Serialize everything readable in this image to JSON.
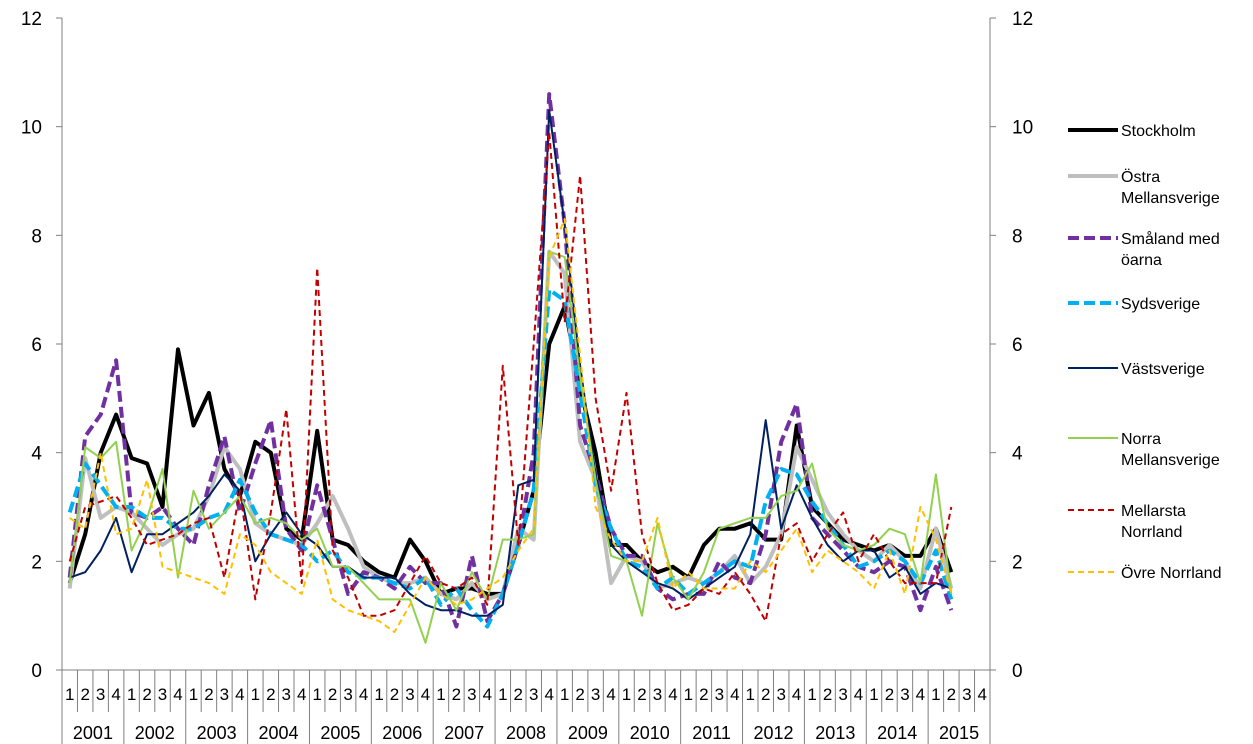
{
  "chart_data": {
    "type": "line",
    "title": "",
    "xlabel": "",
    "ylabel": "",
    "ylim": [
      0,
      12
    ],
    "yticks": [
      0,
      2,
      4,
      6,
      8,
      10,
      12
    ],
    "secondary_y_axis": true,
    "legend_position": "right",
    "grid": false,
    "quarter_labels": [
      "1",
      "2",
      "3",
      "4"
    ],
    "years": [
      "2001",
      "2002",
      "2003",
      "2004",
      "2005",
      "2006",
      "2007",
      "2008",
      "2009",
      "2010",
      "2011",
      "2012",
      "2013",
      "2014",
      "2015"
    ],
    "x": [
      "2001Q1",
      "2001Q2",
      "2001Q3",
      "2001Q4",
      "2002Q1",
      "2002Q2",
      "2002Q3",
      "2002Q4",
      "2003Q1",
      "2003Q2",
      "2003Q3",
      "2003Q4",
      "2004Q1",
      "2004Q2",
      "2004Q3",
      "2004Q4",
      "2005Q1",
      "2005Q2",
      "2005Q3",
      "2005Q4",
      "2006Q1",
      "2006Q2",
      "2006Q3",
      "2006Q4",
      "2007Q1",
      "2007Q2",
      "2007Q3",
      "2007Q4",
      "2008Q1",
      "2008Q2",
      "2008Q3",
      "2008Q4",
      "2009Q1",
      "2009Q2",
      "2009Q3",
      "2009Q4",
      "2010Q1",
      "2010Q2",
      "2010Q3",
      "2010Q4",
      "2011Q1",
      "2011Q2",
      "2011Q3",
      "2011Q4",
      "2012Q1",
      "2012Q2",
      "2012Q3",
      "2012Q4",
      "2013Q1",
      "2013Q2",
      "2013Q3",
      "2013Q4",
      "2014Q1",
      "2014Q2",
      "2014Q3",
      "2014Q4",
      "2015Q1",
      "2015Q2"
    ],
    "series": [
      {
        "name": "Stockholm",
        "color": "#000000",
        "width": 4,
        "dash": "",
        "values": [
          1.6,
          2.5,
          4.0,
          4.7,
          3.9,
          3.8,
          3.0,
          5.9,
          4.5,
          5.1,
          3.7,
          3.2,
          4.2,
          4.0,
          2.6,
          2.4,
          4.4,
          2.4,
          2.3,
          2.0,
          1.8,
          1.7,
          2.4,
          2.0,
          1.4,
          1.5,
          1.5,
          1.4,
          1.4,
          2.3,
          3.3,
          6.0,
          6.7,
          5.2,
          4.0,
          2.3,
          2.3,
          2.0,
          1.8,
          1.9,
          1.7,
          2.3,
          2.6,
          2.6,
          2.7,
          2.4,
          2.4,
          4.5,
          3.0,
          2.7,
          2.4,
          2.3,
          2.2,
          2.3,
          2.1,
          2.1,
          2.6,
          1.8
        ]
      },
      {
        "name": "Östra Mellansverige",
        "color": "#bfbfbf",
        "width": 4,
        "dash": "",
        "values": [
          1.5,
          3.9,
          2.8,
          3.0,
          2.9,
          2.6,
          2.3,
          2.5,
          2.6,
          3.2,
          4.1,
          3.7,
          2.7,
          2.5,
          2.4,
          2.3,
          2.7,
          3.2,
          2.6,
          1.9,
          1.7,
          1.6,
          1.6,
          1.7,
          1.4,
          1.3,
          1.6,
          1.3,
          1.4,
          2.6,
          2.4,
          7.7,
          7.3,
          4.2,
          3.5,
          1.6,
          2.1,
          2.0,
          1.5,
          1.6,
          1.7,
          1.6,
          1.8,
          2.1,
          1.6,
          1.9,
          2.5,
          4.1,
          3.5,
          2.9,
          2.5,
          2.2,
          2.0,
          2.3,
          2.0,
          1.5,
          2.6,
          1.5
        ]
      },
      {
        "name": "Småland med öarna",
        "color": "#7030a0",
        "width": 4,
        "dash": "11,5",
        "values": [
          1.7,
          4.3,
          4.7,
          5.7,
          2.9,
          2.8,
          3.0,
          2.6,
          2.3,
          3.4,
          4.3,
          2.9,
          3.8,
          4.6,
          2.6,
          2.2,
          3.4,
          2.4,
          1.4,
          1.8,
          1.7,
          1.5,
          1.9,
          1.6,
          1.6,
          0.8,
          2.1,
          0.9,
          1.4,
          2.3,
          4.0,
          10.6,
          8.2,
          4.5,
          3.6,
          2.6,
          2.1,
          2.1,
          1.5,
          1.3,
          1.4,
          1.4,
          2.0,
          1.7,
          1.6,
          2.5,
          4.2,
          4.9,
          2.8,
          2.5,
          2.2,
          1.9,
          1.8,
          2.0,
          1.9,
          1.1,
          1.9,
          1.1
        ]
      },
      {
        "name": "Sydsverige",
        "color": "#00b0f0",
        "width": 4,
        "dash": "11,5",
        "values": [
          2.9,
          3.8,
          3.4,
          3.0,
          3.0,
          2.8,
          2.8,
          2.6,
          2.6,
          2.8,
          2.9,
          3.5,
          2.9,
          2.5,
          2.4,
          2.3,
          2.0,
          2.2,
          1.8,
          1.7,
          1.7,
          1.6,
          1.5,
          1.7,
          1.2,
          1.5,
          1.1,
          0.8,
          1.4,
          2.3,
          3.3,
          7.0,
          6.8,
          5.1,
          3.4,
          2.6,
          2.0,
          1.9,
          1.5,
          1.7,
          1.4,
          1.6,
          1.8,
          2.0,
          1.9,
          3.1,
          3.7,
          3.6,
          3.1,
          2.7,
          2.3,
          1.9,
          2.0,
          2.2,
          2.0,
          1.6,
          2.2,
          1.3
        ]
      },
      {
        "name": "Västsverige",
        "color": "#002060",
        "width": 2,
        "dash": "",
        "values": [
          1.7,
          1.8,
          2.2,
          2.8,
          1.8,
          2.5,
          2.5,
          2.7,
          2.9,
          3.2,
          3.6,
          3.3,
          2.0,
          2.5,
          2.9,
          2.5,
          2.3,
          1.9,
          1.9,
          1.7,
          1.7,
          1.7,
          1.4,
          1.2,
          1.1,
          1.1,
          1.0,
          1.0,
          1.2,
          3.4,
          3.5,
          10.3,
          8.2,
          5.6,
          3.6,
          2.3,
          2.0,
          1.8,
          1.6,
          1.5,
          1.3,
          1.5,
          1.7,
          1.9,
          2.5,
          4.6,
          2.6,
          3.4,
          2.8,
          2.3,
          2.0,
          2.2,
          2.2,
          1.7,
          1.9,
          1.4,
          1.6,
          1.5
        ]
      },
      {
        "name": "Norra Mellansverige",
        "color": "#92d050",
        "width": 2,
        "dash": "",
        "values": [
          1.6,
          4.1,
          3.9,
          4.2,
          2.2,
          2.8,
          3.7,
          1.7,
          3.3,
          2.6,
          2.9,
          3.2,
          2.7,
          2.8,
          2.7,
          2.4,
          2.6,
          1.9,
          1.9,
          1.6,
          1.3,
          1.3,
          1.3,
          0.5,
          1.6,
          1.1,
          1.8,
          1.3,
          2.4,
          2.4,
          2.5,
          7.7,
          7.6,
          5.4,
          3.5,
          2.1,
          2.0,
          1.0,
          2.7,
          1.7,
          1.3,
          1.8,
          2.6,
          2.7,
          2.8,
          2.8,
          3.2,
          3.3,
          3.8,
          2.6,
          2.3,
          2.2,
          2.3,
          2.6,
          2.5,
          1.6,
          3.6,
          1.4
        ]
      },
      {
        "name": "Mellarsta Norrland",
        "color": "#c00000",
        "width": 2,
        "dash": "6,4",
        "values": [
          2.0,
          3.0,
          3.1,
          3.2,
          2.8,
          2.3,
          2.4,
          2.5,
          2.7,
          2.8,
          1.7,
          3.3,
          1.3,
          2.9,
          4.8,
          1.6,
          7.4,
          2.2,
          1.7,
          1.0,
          1.0,
          1.1,
          1.6,
          2.1,
          1.6,
          1.5,
          1.7,
          1.2,
          5.6,
          2.3,
          6.0,
          9.9,
          6.4,
          9.1,
          5.0,
          3.3,
          5.1,
          2.5,
          1.6,
          1.1,
          1.2,
          1.5,
          1.4,
          1.8,
          1.4,
          0.9,
          2.5,
          2.7,
          2.0,
          2.5,
          2.9,
          2.0,
          2.5,
          2.0,
          1.6,
          1.6,
          1.6,
          3.0
        ]
      },
      {
        "name": "Övre Norrland",
        "color": "#ffc000",
        "width": 2,
        "dash": "6,4",
        "values": [
          2.8,
          2.6,
          4.0,
          2.5,
          2.6,
          3.5,
          1.9,
          1.8,
          1.7,
          1.6,
          1.4,
          2.5,
          2.3,
          1.8,
          1.6,
          1.4,
          2.4,
          1.3,
          1.1,
          1.0,
          0.9,
          0.7,
          1.2,
          1.7,
          1.4,
          1.2,
          1.3,
          1.5,
          1.7,
          2.2,
          2.6,
          7.6,
          8.3,
          5.8,
          3.0,
          2.4,
          2.0,
          2.0,
          2.8,
          1.5,
          1.8,
          1.5,
          1.5,
          1.5,
          2.0,
          1.8,
          2.2,
          2.6,
          1.8,
          2.2,
          2.0,
          1.8,
          1.5,
          2.2,
          1.4,
          3.0,
          2.4,
          1.4
        ]
      }
    ],
    "total_quarter_slots": 60
  }
}
